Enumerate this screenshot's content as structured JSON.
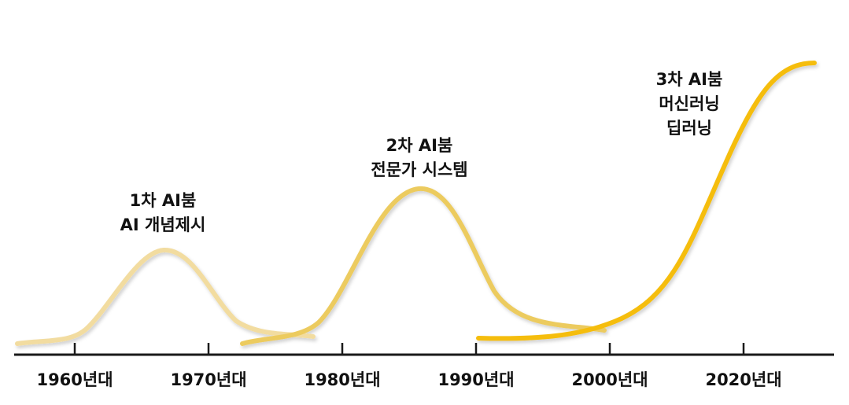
{
  "timeline": {
    "ticks": [
      "1960년대",
      "1970년대",
      "1980년대",
      "1990년대",
      "2000년대",
      "2020년대"
    ]
  },
  "booms": [
    {
      "lines": [
        "1차 AI붐",
        "AI 개념제시"
      ],
      "color": "#f2dca0"
    },
    {
      "lines": [
        "2차 AI붐",
        "전문가 시스템"
      ],
      "color": "#eccb5e"
    },
    {
      "lines": [
        "3차 AI붐",
        "머신러닝",
        "딥러닝"
      ],
      "color": "#f5bd0c"
    }
  ]
}
